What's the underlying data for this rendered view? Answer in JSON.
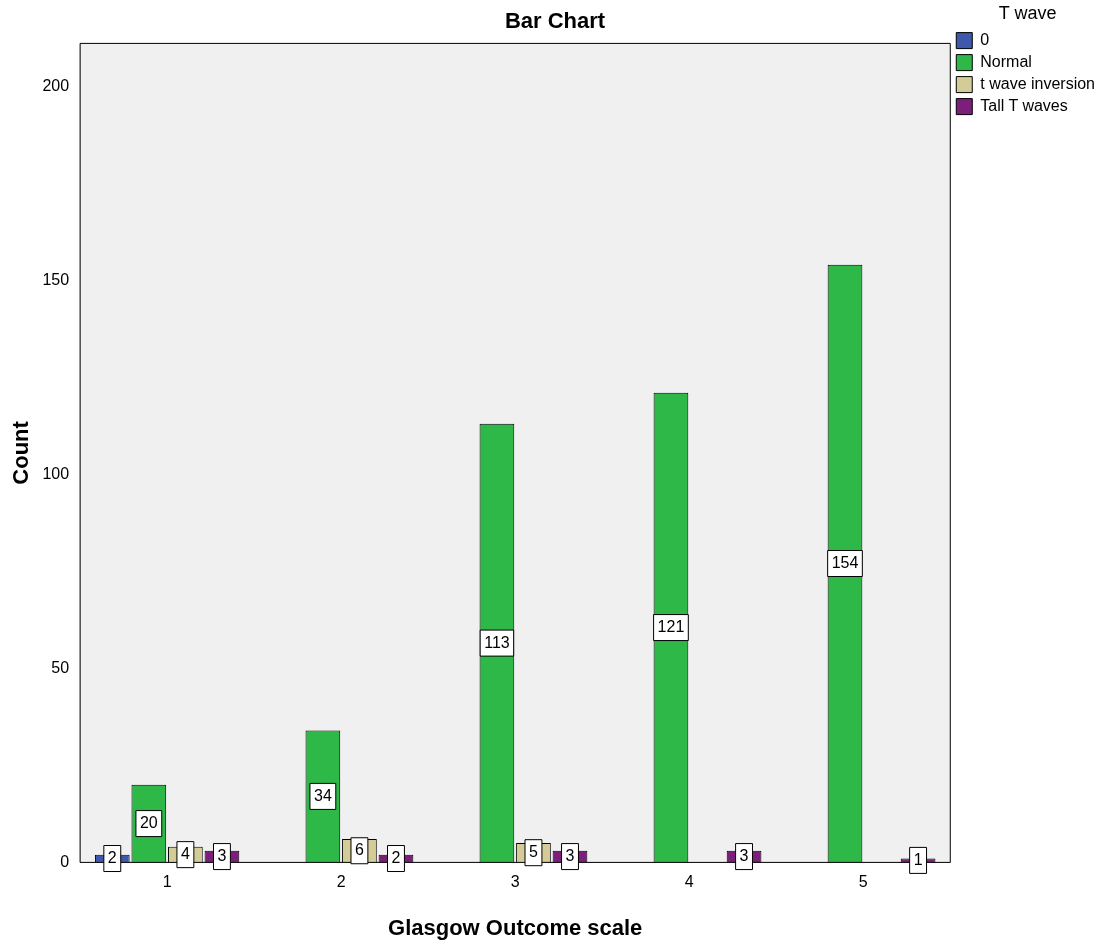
{
  "chart_data": {
    "type": "bar",
    "title": "Bar Chart",
    "xlabel": "Glasgow Outcome scale",
    "ylabel": "Count",
    "legend_title": "T wave",
    "categories": [
      "1",
      "2",
      "3",
      "4",
      "5"
    ],
    "series": [
      {
        "name": "0",
        "color": "#3e58ac",
        "values": [
          2,
          null,
          null,
          null,
          null
        ]
      },
      {
        "name": "Normal",
        "color": "#2eb848",
        "values": [
          20,
          34,
          113,
          121,
          154
        ]
      },
      {
        "name": "t wave inversion",
        "color": "#d4cc96",
        "values": [
          4,
          6,
          5,
          null,
          null
        ]
      },
      {
        "name": "Tall T waves",
        "color": "#7b1f7b",
        "values": [
          3,
          2,
          3,
          3,
          1
        ]
      }
    ],
    "ylim": [
      0,
      211
    ],
    "yticks": [
      0,
      50,
      100,
      150,
      200
    ],
    "grid": false,
    "legend": "right",
    "data_labels": true
  }
}
